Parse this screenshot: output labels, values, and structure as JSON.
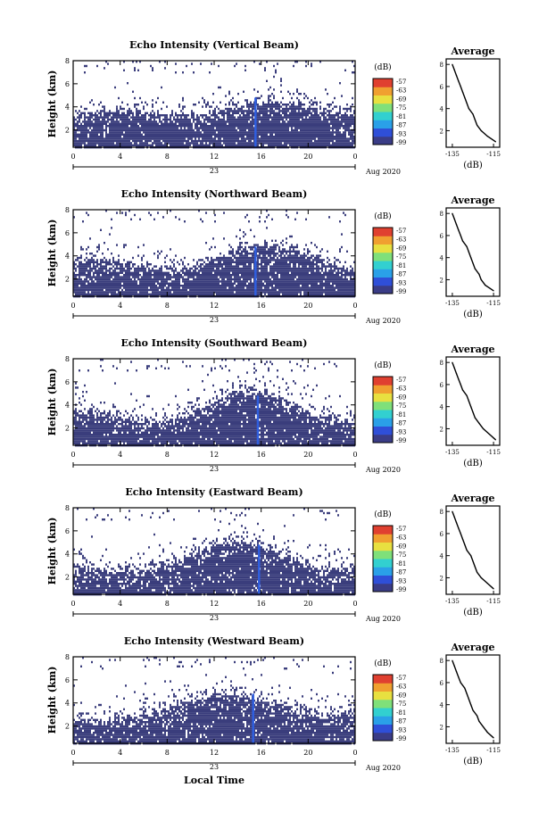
{
  "figure": {
    "bottom_label": "Local Time",
    "date_label": "Aug 2020",
    "date_tick": "23",
    "x_ticks": [
      "0",
      "4",
      "8",
      "12",
      "16",
      "20",
      "0"
    ],
    "y_label": "Height (km)",
    "y_ticks": [
      "2",
      "4",
      "6",
      "8"
    ],
    "colorbar_unit": "(dB)",
    "colorbar_ticks": [
      "-57",
      "-63",
      "-69",
      "-75",
      "-81",
      "-87",
      "-93",
      "-99"
    ],
    "avg_title": "Average",
    "avg_xlabel": "(dB)"
  },
  "colors": {
    "echo_fill": "#3a3d7c",
    "spike": "#2f5fe0",
    "colormap": [
      "#3a3c86",
      "#2f4fd8",
      "#2aa0e8",
      "#32d0d0",
      "#7fe07a",
      "#e8e040",
      "#f0a030",
      "#e04030"
    ]
  },
  "chart_data": [
    {
      "type": "heatmap",
      "title": "Echo Intensity (Vertical Beam)",
      "x_range_hours": [
        0,
        24
      ],
      "y_range_km": [
        0.5,
        8
      ],
      "value_range_db": [
        -99,
        -57
      ],
      "spike_hour": 15.5,
      "avg_profile": {
        "title": "Average",
        "xlabel": "(dB)",
        "x_ticks": [
          "-135",
          "-115"
        ],
        "y_ticks": [
          "2",
          "4",
          "6",
          "8"
        ],
        "height_km": [
          1.0,
          1.5,
          2.0,
          2.5,
          3.0,
          3.5,
          4.0,
          4.5,
          5.0,
          5.5,
          6.0,
          6.5,
          7.0,
          7.5,
          8.0
        ],
        "db": [
          -114,
          -118,
          -121,
          -123,
          -124,
          -125,
          -127,
          -128,
          -129,
          -130,
          -131,
          -132,
          -133,
          -134,
          -135
        ]
      }
    },
    {
      "type": "heatmap",
      "title": "Echo Intensity (Northward Beam)",
      "x_range_hours": [
        0,
        24
      ],
      "y_range_km": [
        0.5,
        8
      ],
      "value_range_db": [
        -99,
        -57
      ],
      "spike_hour": 15.5,
      "avg_profile": {
        "title": "Average",
        "xlabel": "(dB)",
        "x_ticks": [
          "-135",
          "-115"
        ],
        "y_ticks": [
          "2",
          "4",
          "6",
          "8"
        ],
        "height_km": [
          1.0,
          1.5,
          2.0,
          2.5,
          3.0,
          3.5,
          4.0,
          4.5,
          5.0,
          5.5,
          6.0,
          6.5,
          7.0,
          7.5,
          8.0
        ],
        "db": [
          -115,
          -119,
          -121,
          -122,
          -124,
          -125,
          -126,
          -127,
          -128,
          -130,
          -131,
          -132,
          -133,
          -134,
          -135
        ]
      }
    },
    {
      "type": "heatmap",
      "title": "Echo Intensity (Southward Beam)",
      "x_range_hours": [
        0,
        24
      ],
      "y_range_km": [
        0.5,
        8
      ],
      "value_range_db": [
        -99,
        -57
      ],
      "spike_hour": 15.7,
      "avg_profile": {
        "title": "Average",
        "xlabel": "(dB)",
        "x_ticks": [
          "-135",
          "-115"
        ],
        "y_ticks": [
          "2",
          "4",
          "6",
          "8"
        ],
        "height_km": [
          1.0,
          1.5,
          2.0,
          2.5,
          3.0,
          3.5,
          4.0,
          4.5,
          5.0,
          5.5,
          6.0,
          6.5,
          7.0,
          7.5,
          8.0
        ],
        "db": [
          -114,
          -117,
          -120,
          -122,
          -124,
          -125,
          -126,
          -127,
          -128,
          -130,
          -131,
          -132,
          -133,
          -134,
          -135
        ]
      }
    },
    {
      "type": "heatmap",
      "title": "Echo Intensity (Eastward Beam)",
      "x_range_hours": [
        0,
        24
      ],
      "y_range_km": [
        0.5,
        8
      ],
      "value_range_db": [
        -99,
        -57
      ],
      "spike_hour": 15.8,
      "avg_profile": {
        "title": "Average",
        "xlabel": "(dB)",
        "x_ticks": [
          "-135",
          "-115"
        ],
        "y_ticks": [
          "2",
          "4",
          "6",
          "8"
        ],
        "height_km": [
          1.0,
          1.5,
          2.0,
          2.5,
          3.0,
          3.5,
          4.0,
          4.5,
          5.0,
          5.5,
          6.0,
          6.5,
          7.0,
          7.5,
          8.0
        ],
        "db": [
          -115,
          -118,
          -121,
          -123,
          -124,
          -125,
          -126,
          -128,
          -129,
          -130,
          -131,
          -132,
          -133,
          -134,
          -135
        ]
      }
    },
    {
      "type": "heatmap",
      "title": "Echo Intensity (Westward Beam)",
      "x_range_hours": [
        0,
        24
      ],
      "y_range_km": [
        0.5,
        8
      ],
      "value_range_db": [
        -99,
        -57
      ],
      "spike_hour": 15.3,
      "avg_profile": {
        "title": "Average",
        "xlabel": "(dB)",
        "x_ticks": [
          "-135",
          "-115"
        ],
        "y_ticks": [
          "2",
          "4",
          "6",
          "8"
        ],
        "height_km": [
          1.0,
          1.5,
          2.0,
          2.5,
          3.0,
          3.5,
          4.0,
          4.5,
          5.0,
          5.5,
          6.0,
          6.5,
          7.0,
          7.5,
          8.0
        ],
        "db": [
          -115,
          -118,
          -120,
          -122,
          -123,
          -125,
          -126,
          -127,
          -128,
          -129,
          -131,
          -132,
          -133,
          -134,
          -135
        ]
      }
    }
  ]
}
